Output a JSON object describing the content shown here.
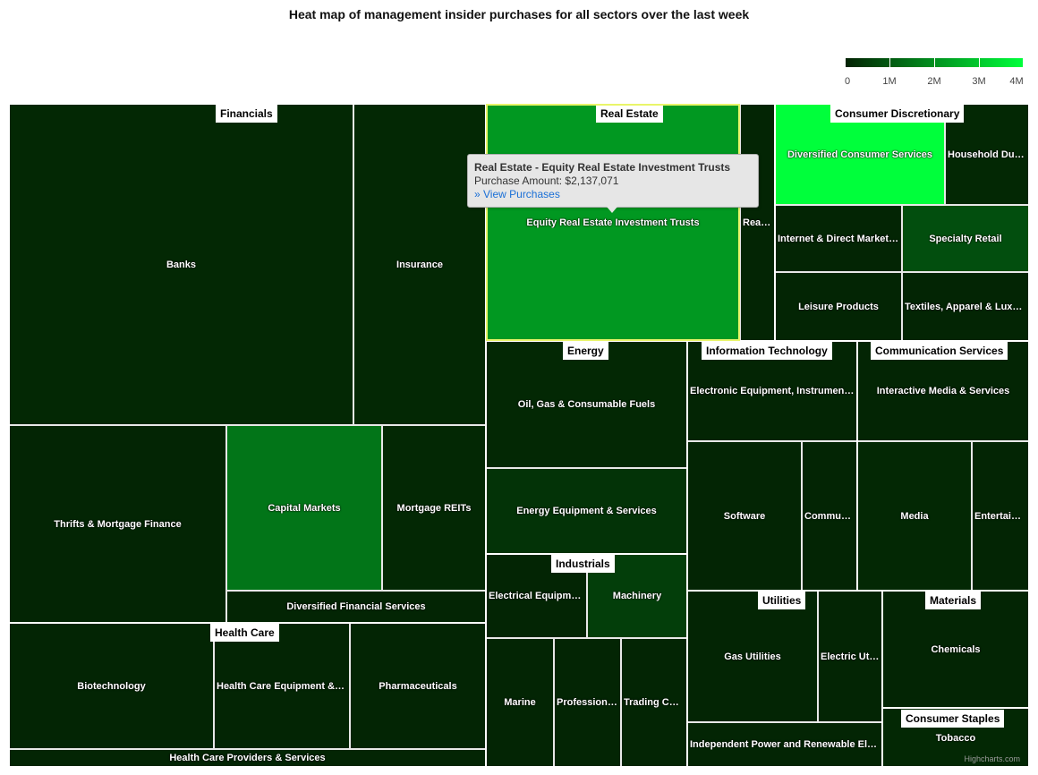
{
  "chart_data": {
    "type": "heatmap",
    "subtype": "treemap",
    "title": "Heat map of management insider purchases for all sectors over the last week",
    "color_axis": {
      "min": 0,
      "max": 4000000,
      "min_color": "#032203",
      "max_color": "#00ff3b",
      "tick_labels": [
        "0",
        "1M",
        "2M",
        "3M",
        "4M"
      ]
    },
    "sectors": [
      {
        "name": "Financials",
        "industries": [
          {
            "name": "Banks",
            "value": 100000
          },
          {
            "name": "Insurance",
            "value": 100000
          },
          {
            "name": "Thrifts & Mortgage Finance",
            "value": 50000
          },
          {
            "name": "Capital Markets",
            "value": 1500000
          },
          {
            "name": "Mortgage REITs",
            "value": 100000
          },
          {
            "name": "Diversified Financial Services",
            "value": 50000
          }
        ]
      },
      {
        "name": "Real Estate",
        "industries": [
          {
            "name": "Equity Real Estate Investment Trusts",
            "value": 2137071
          },
          {
            "name": "Real Estate Management & Development",
            "value": 50000
          }
        ]
      },
      {
        "name": "Consumer Discretionary",
        "industries": [
          {
            "name": "Diversified Consumer Services",
            "value": 4000000
          },
          {
            "name": "Household Durables",
            "value": 100000
          },
          {
            "name": "Internet & Direct Marketing Retail",
            "value": 50000
          },
          {
            "name": "Specialty Retail",
            "value": 800000
          },
          {
            "name": "Leisure Products",
            "value": 50000
          },
          {
            "name": "Textiles, Apparel & Luxury Goods",
            "value": 50000
          }
        ]
      },
      {
        "name": "Energy",
        "industries": [
          {
            "name": "Oil, Gas & Consumable Fuels",
            "value": 100000
          },
          {
            "name": "Energy Equipment & Services",
            "value": 300000
          }
        ]
      },
      {
        "name": "Information Technology",
        "industries": [
          {
            "name": "Electronic Equipment, Instruments & Components",
            "value": 50000
          },
          {
            "name": "Software",
            "value": 50000
          },
          {
            "name": "Communications Equipment",
            "value": 50000
          }
        ]
      },
      {
        "name": "Communication Services",
        "industries": [
          {
            "name": "Interactive Media & Services",
            "value": 50000
          },
          {
            "name": "Media",
            "value": 100000
          },
          {
            "name": "Entertainment",
            "value": 50000
          }
        ]
      },
      {
        "name": "Industrials",
        "industries": [
          {
            "name": "Electrical Equipment",
            "value": 50000
          },
          {
            "name": "Machinery",
            "value": 500000
          },
          {
            "name": "Marine",
            "value": 50000
          },
          {
            "name": "Professional Services",
            "value": 50000
          },
          {
            "name": "Trading Companies & Distributors",
            "value": 50000
          }
        ]
      },
      {
        "name": "Health Care",
        "industries": [
          {
            "name": "Biotechnology",
            "value": 50000
          },
          {
            "name": "Health Care Equipment & Supplies",
            "value": 50000
          },
          {
            "name": "Pharmaceuticals",
            "value": 50000
          },
          {
            "name": "Health Care Providers & Services",
            "value": 50000
          }
        ]
      },
      {
        "name": "Utilities",
        "industries": [
          {
            "name": "Gas Utilities",
            "value": 50000
          },
          {
            "name": "Electric Utilities",
            "value": 50000
          },
          {
            "name": "Independent Power and Renewable Electricity Producers",
            "value": 50000
          }
        ]
      },
      {
        "name": "Materials",
        "industries": [
          {
            "name": "Chemicals",
            "value": 50000
          }
        ]
      },
      {
        "name": "Consumer Staples",
        "industries": [
          {
            "name": "Tobacco",
            "value": 100000
          }
        ]
      }
    ]
  },
  "tooltip": {
    "title": "Real Estate - Equity Real Estate Investment Trusts",
    "line": "Purchase Amount: $2,137,071",
    "link": "» View Purchases"
  },
  "credits": "Highcharts.com"
}
